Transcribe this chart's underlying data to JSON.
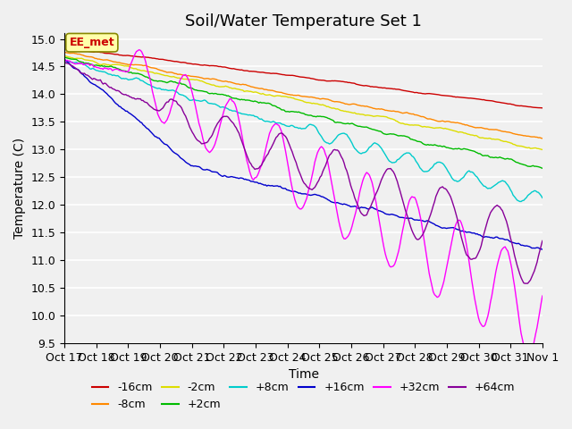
{
  "title": "Soil/Water Temperature Set 1",
  "xlabel": "Time",
  "ylabel": "Temperature (C)",
  "ylim": [
    9.5,
    15.1
  ],
  "annotation": "EE_met",
  "x_ticks_labels": [
    "Oct 17",
    "Oct 18",
    "Oct 19",
    "Oct 20",
    "Oct 21",
    "Oct 22",
    "Oct 23",
    "Oct 24",
    "Oct 25",
    "Oct 26",
    "Oct 27",
    "Oct 28",
    "Oct 29",
    "Oct 30",
    "Oct 31",
    "Nov 1"
  ],
  "x_ticks_pos": [
    0,
    1,
    2,
    3,
    4,
    5,
    6,
    7,
    8,
    9,
    10,
    11,
    12,
    13,
    14,
    15
  ],
  "yticks": [
    9.5,
    10.0,
    10.5,
    11.0,
    11.5,
    12.0,
    12.5,
    13.0,
    13.5,
    14.0,
    14.5,
    15.0
  ],
  "series": [
    {
      "label": "-16cm",
      "color": "#cc0000"
    },
    {
      "label": "-8cm",
      "color": "#ff8800"
    },
    {
      "label": "-2cm",
      "color": "#dddd00"
    },
    {
      "label": "+2cm",
      "color": "#00bb00"
    },
    {
      "label": "+8cm",
      "color": "#00cccc"
    },
    {
      "label": "+16cm",
      "color": "#0000cc"
    },
    {
      "label": "+32cm",
      "color": "#ff00ff"
    },
    {
      "label": "+64cm",
      "color": "#880099"
    }
  ],
  "background_color": "#f0f0f0",
  "grid_color": "#ffffff",
  "title_fontsize": 13,
  "label_fontsize": 10,
  "tick_fontsize": 9,
  "legend_fontsize": 9
}
